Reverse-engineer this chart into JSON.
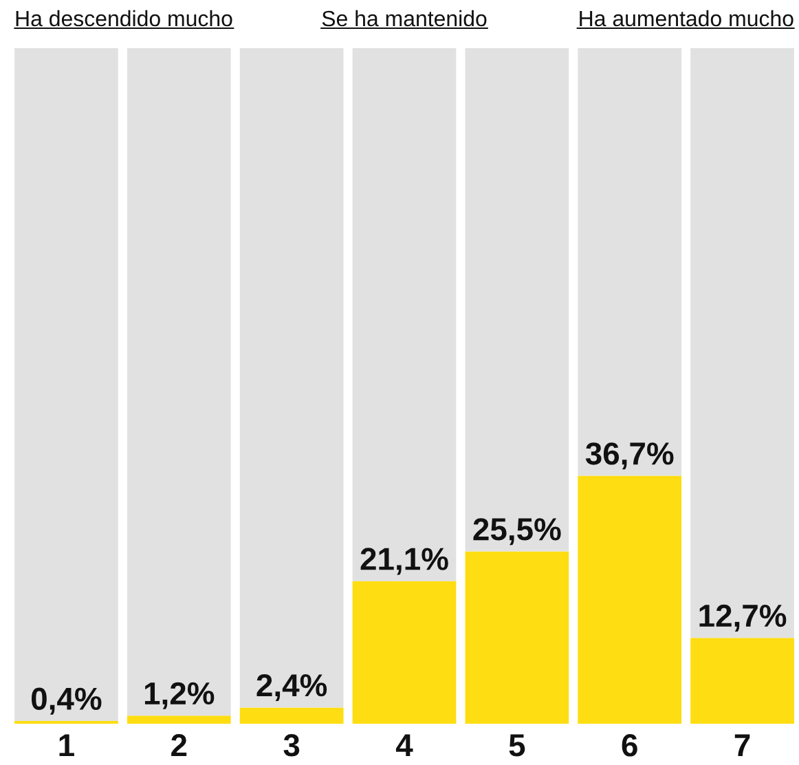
{
  "chart_data": {
    "type": "bar",
    "stacked": true,
    "categories": [
      "1",
      "2",
      "3",
      "4",
      "5",
      "6",
      "7"
    ],
    "series": [
      {
        "color": "#fedd12",
        "values": [
          0.4,
          1.2,
          2.4,
          21.1,
          25.5,
          36.7,
          12.7
        ],
        "value_labels": [
          "0,4%",
          "1,2%",
          "2,4%",
          "21,1%",
          "25,5%",
          "36,7%",
          "12,7%"
        ]
      },
      {
        "color": "#e1e1e1",
        "values": [
          99.6,
          98.8,
          97.6,
          78.9,
          74.5,
          63.3,
          87.3
        ]
      }
    ],
    "ylim": [
      0,
      100
    ],
    "tick_labels": "x",
    "annotations": [
      "Ha descendido mucho",
      "Se ha mantenido",
      "Ha aumentado mucho"
    ]
  }
}
